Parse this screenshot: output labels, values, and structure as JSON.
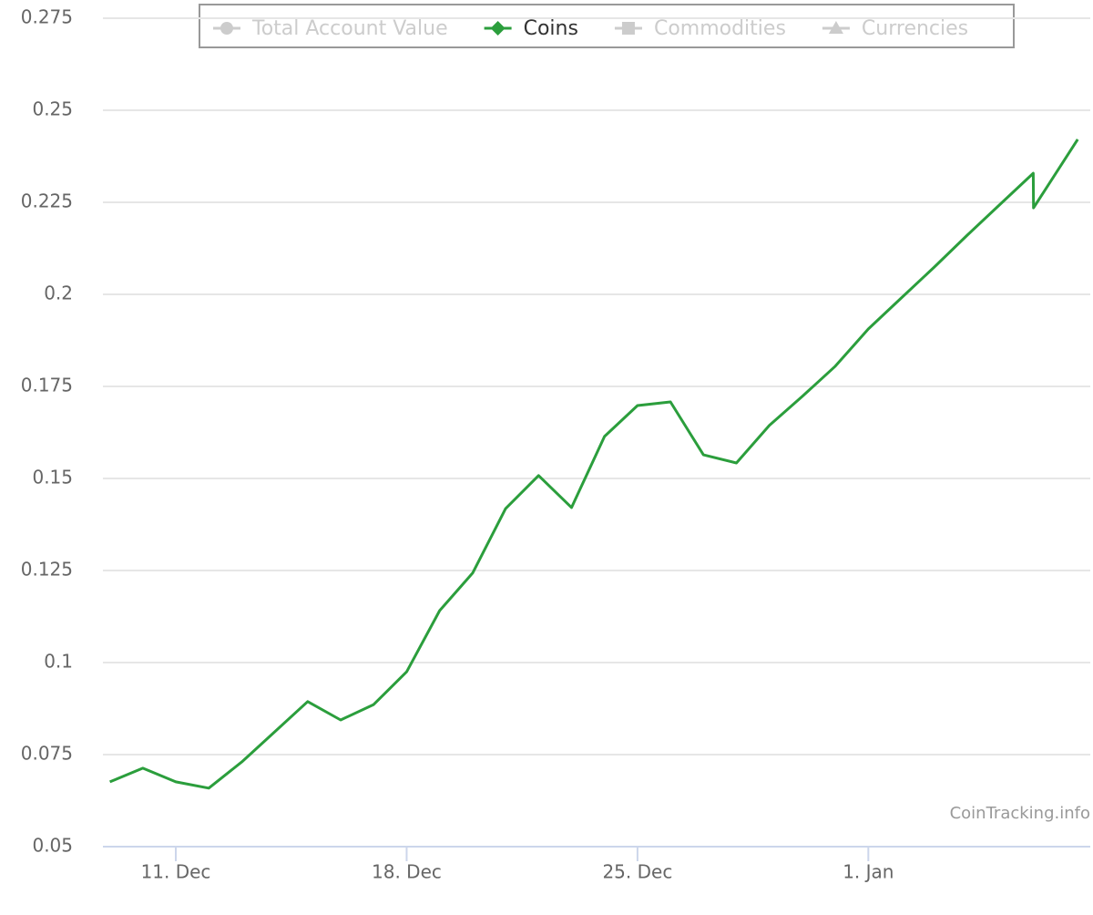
{
  "chart_data": {
    "type": "line",
    "x": [
      9,
      10,
      11,
      12,
      13,
      14,
      15,
      16,
      17,
      18,
      19,
      20,
      21,
      22,
      23,
      24,
      25,
      26,
      27,
      28,
      29,
      30,
      31,
      32,
      33,
      34,
      35,
      36,
      37,
      37.01,
      38.35
    ],
    "series": [
      {
        "name": "Total Account Value",
        "marker": "circle",
        "visible": false
      },
      {
        "name": "Coins",
        "marker": "diamond",
        "visible": true,
        "color": "#2b9e3c",
        "values": [
          0.0676,
          0.0713,
          0.0676,
          0.0659,
          0.073,
          0.0812,
          0.0894,
          0.0844,
          0.0886,
          0.0975,
          0.1141,
          0.1243,
          0.1418,
          0.1508,
          0.1421,
          0.1614,
          0.1698,
          0.1708,
          0.1564,
          0.1542,
          0.1644,
          0.1723,
          0.1805,
          0.1906,
          0.199,
          0.2074,
          0.2161,
          0.2245,
          0.2329,
          0.2235,
          0.2421
        ]
      },
      {
        "name": "Commodities",
        "marker": "square",
        "visible": false
      },
      {
        "name": "Currencies",
        "marker": "triangle",
        "visible": false
      }
    ],
    "xlim": [
      8.79,
      38.73
    ],
    "xticks": [
      {
        "value": 11,
        "label": "11. Dec"
      },
      {
        "value": 18,
        "label": "18. Dec"
      },
      {
        "value": 25,
        "label": "25. Dec"
      },
      {
        "value": 32,
        "label": "1. Jan"
      }
    ],
    "ylim": [
      0.05,
      0.275
    ],
    "yticks": [
      0.05,
      0.075,
      0.1,
      0.125,
      0.15,
      0.175,
      0.2,
      0.225,
      0.25,
      0.275
    ],
    "grid": true,
    "legend": "top",
    "credits": "CoinTracking.info"
  }
}
